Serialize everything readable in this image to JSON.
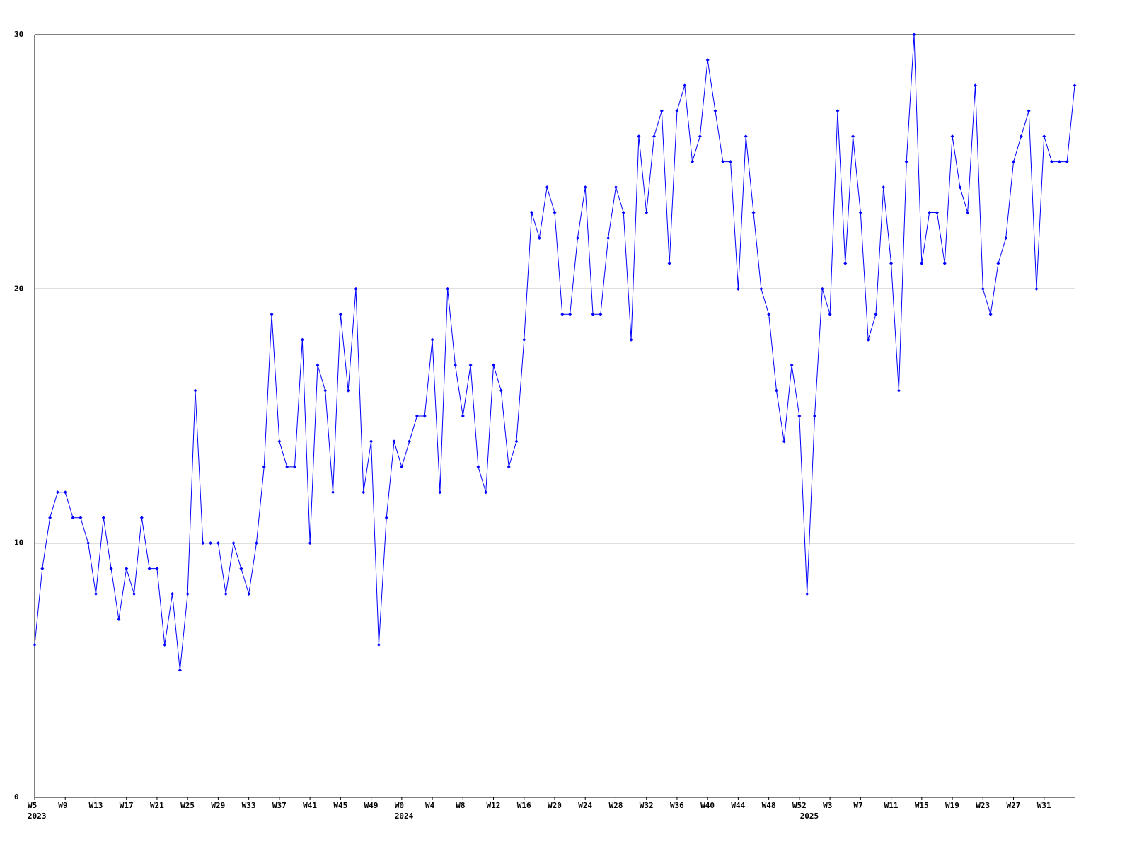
{
  "chart_data": {
    "type": "line",
    "categories": [
      "W5",
      null,
      null,
      null,
      "W9",
      null,
      null,
      null,
      "W13",
      null,
      null,
      null,
      "W17",
      null,
      null,
      null,
      "W21",
      null,
      null,
      null,
      "W25",
      null,
      null,
      null,
      "W29",
      null,
      null,
      null,
      "W33",
      null,
      null,
      null,
      "W37",
      null,
      null,
      null,
      "W41",
      null,
      null,
      null,
      "W45",
      null,
      null,
      null,
      "W49",
      null,
      null,
      null,
      "W0",
      null,
      null,
      null,
      "W4",
      null,
      null,
      null,
      "W8",
      null,
      null,
      null,
      "W12",
      null,
      null,
      null,
      "W16",
      null,
      null,
      null,
      "W20",
      null,
      null,
      null,
      "W24",
      null,
      null,
      null,
      "W28",
      null,
      null,
      null,
      "W32",
      null,
      null,
      null,
      "W36",
      null,
      null,
      null,
      "W40",
      null,
      null,
      null,
      "W44",
      null,
      null,
      null,
      "W48",
      null,
      null,
      null,
      "W52",
      null,
      null,
      null,
      "W3",
      null,
      null,
      null,
      "W7",
      null,
      null,
      null,
      "W11",
      null,
      null,
      null,
      "W15",
      null,
      null,
      null,
      "W19",
      null,
      null,
      null,
      "W23",
      null,
      null,
      null,
      "W27",
      null,
      null,
      null,
      "W31",
      null,
      null,
      null,
      null
    ],
    "years": [
      "2023",
      null,
      null,
      null,
      null,
      null,
      null,
      null,
      null,
      null,
      null,
      null,
      null,
      null,
      null,
      null,
      null,
      null,
      null,
      null,
      null,
      null,
      null,
      null,
      null,
      null,
      null,
      null,
      null,
      null,
      null,
      null,
      null,
      null,
      null,
      null,
      null,
      null,
      null,
      null,
      null,
      null,
      null,
      null,
      null,
      null,
      null,
      null,
      "2024",
      null,
      null,
      null,
      null,
      null,
      null,
      null,
      null,
      null,
      null,
      null,
      null,
      null,
      null,
      null,
      null,
      null,
      null,
      null,
      null,
      null,
      null,
      null,
      null,
      null,
      null,
      null,
      null,
      null,
      null,
      null,
      null,
      null,
      null,
      null,
      null,
      null,
      null,
      null,
      null,
      null,
      null,
      null,
      null,
      null,
      null,
      null,
      null,
      null,
      null,
      null,
      null,
      "2025",
      null,
      null,
      null,
      null,
      null,
      null,
      null,
      null,
      null,
      null,
      null,
      null,
      null,
      null,
      null,
      null,
      null,
      null,
      null,
      null,
      null,
      null,
      null,
      null,
      null,
      null,
      null,
      null,
      null,
      null,
      null,
      null,
      null,
      null,
      null
    ],
    "series": [
      {
        "color": "#0000ff",
        "values": [
          6,
          9,
          11,
          12,
          12,
          11,
          11,
          10,
          8,
          11,
          9,
          7,
          9,
          8,
          11,
          9,
          9,
          6,
          8,
          5,
          8,
          16,
          10,
          10,
          10,
          8,
          10,
          9,
          8,
          10,
          13,
          19,
          14,
          13,
          13,
          18,
          10,
          17,
          16,
          12,
          19,
          16,
          20,
          12,
          14,
          6,
          11,
          14,
          13,
          14,
          15,
          15,
          18,
          12,
          20,
          17,
          15,
          17,
          13,
          12,
          17,
          16,
          13,
          14,
          18,
          23,
          22,
          24,
          23,
          19,
          19,
          22,
          24,
          19,
          19,
          22,
          24,
          23,
          18,
          26,
          23,
          26,
          27,
          21,
          27,
          28,
          25,
          26,
          29,
          27,
          25,
          25,
          20,
          26,
          23,
          20,
          19,
          16,
          14,
          17,
          15,
          8,
          15,
          20,
          19,
          27,
          21,
          26,
          23,
          18,
          19,
          24,
          21,
          16,
          25,
          30,
          21,
          23,
          23,
          21,
          26,
          24,
          23,
          28,
          20,
          19,
          21,
          22,
          25,
          26,
          27,
          20,
          26,
          25,
          25,
          25,
          28
        ]
      }
    ],
    "ylim": [
      0,
      30
    ],
    "yticks": [
      0,
      10,
      20,
      30
    ],
    "grid": true
  }
}
